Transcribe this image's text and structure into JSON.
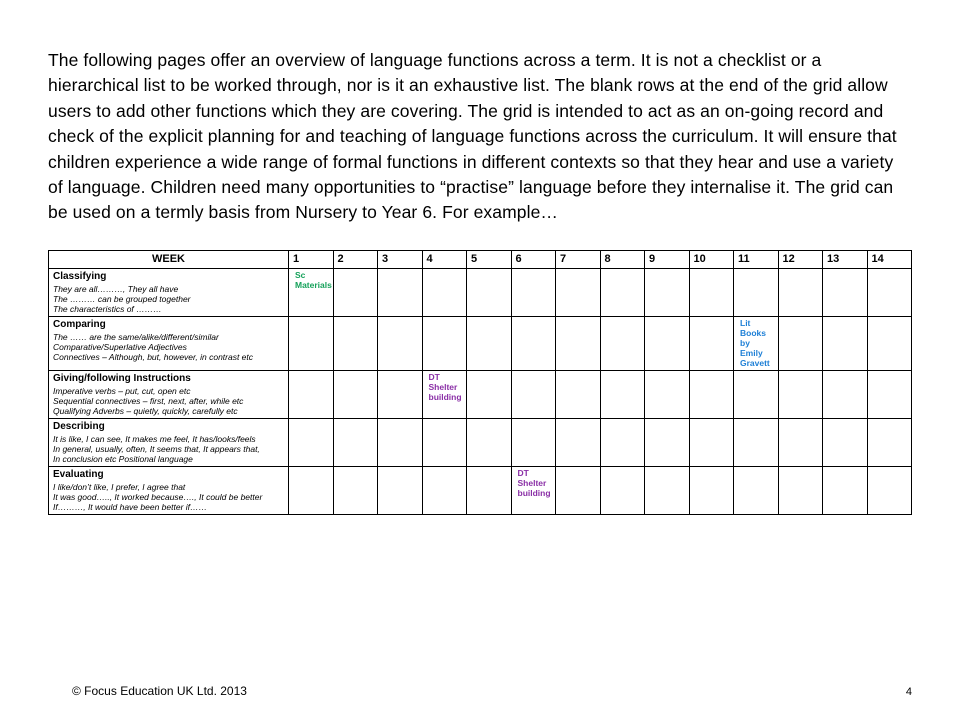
{
  "intro": "The following pages offer an overview of language functions across a term. It is not a checklist or a hierarchical list to be worked through, nor is it an exhaustive list.  The blank rows at the end of the grid allow users to add other functions which they are covering. The grid is intended to act as an on-going record and check of the explicit planning for and teaching of language functions across the curriculum. It will ensure that children experience a wide range of formal functions in different contexts so that they hear and use a variety of language. Children need many opportunities to “practise” language before they internalise it. The grid can be used on a termly basis from Nursery to Year 6. For example…",
  "header": {
    "first": "WEEK",
    "weeks": [
      "1",
      "2",
      "3",
      "4",
      "5",
      "6",
      "7",
      "8",
      "9",
      "10",
      "11",
      "12",
      "13",
      "14"
    ]
  },
  "rows": [
    {
      "title": "Classifying",
      "desc": "They are all………,  They all have\nThe ……… can be grouped together\nThe characteristics of ………",
      "cells": {
        "1": {
          "text": "Sc Materials",
          "color": "#15a15a"
        }
      }
    },
    {
      "title": "Comparing",
      "desc": "The …… are the same/alike/different/similar\nComparative/Superlative  Adjectives\nConnectives – Although, but, however, in contrast etc",
      "cells": {
        "11": {
          "text": "Lit Books by Emily Gravett",
          "color": "#1d7fd6"
        }
      }
    },
    {
      "title": "Giving/following Instructions",
      "desc": "Imperative verbs – put, cut, open etc\nSequential connectives – first, next, after, while etc\nQualifying Adverbs – quietly, quickly, carefully etc",
      "cells": {
        "4": {
          "text": "DT Shelter building",
          "color": "#8a2fa6"
        }
      }
    },
    {
      "title": "Describing",
      "desc": "It is like, I can see, It makes me feel, It has/looks/feels\nIn general, usually, often, It seems that, It appears that,\nIn conclusion etc Positional language",
      "cells": {}
    },
    {
      "title": "Evaluating",
      "desc": "I like/don’t like, I prefer, I agree that\nIt was good….., It worked because…., It could be better\nIf………, It would have been better if……",
      "cells": {
        "6": {
          "text": "DT Shelter building",
          "color": "#8a2fa6"
        }
      }
    }
  ],
  "footer": "© Focus Education UK Ltd. 2013",
  "pagenum": "4"
}
